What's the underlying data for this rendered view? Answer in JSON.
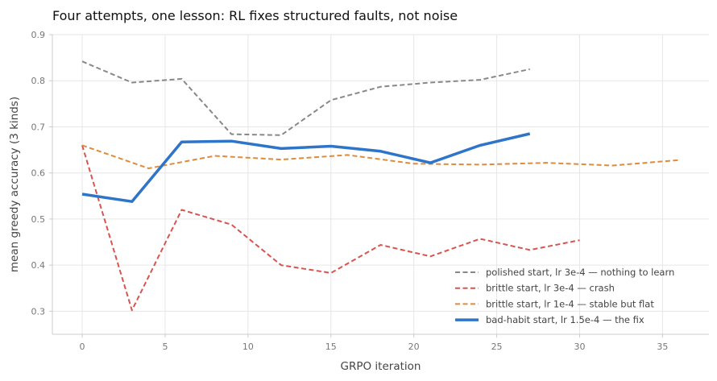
{
  "chart_data": {
    "type": "line",
    "title": "Four attempts, one lesson: RL fixes structured faults, not noise",
    "xlabel": "GRPO iteration",
    "ylabel": "mean greedy accuracy (3 kinds)",
    "xlim": [
      -1.8,
      37.8
    ],
    "ylim": [
      0.25,
      0.9
    ],
    "xticks": [
      0,
      5,
      10,
      15,
      20,
      25,
      30,
      35
    ],
    "yticks": [
      0.3,
      0.4,
      0.5,
      0.6,
      0.7,
      0.8,
      0.9
    ],
    "grid": true,
    "legend_position": "lower-right",
    "series": [
      {
        "name": "polished start, lr 3e-4 — nothing to learn",
        "color": "#888888",
        "style": "dashed",
        "width": 2,
        "x": [
          0,
          3,
          6,
          9,
          12,
          15,
          18,
          21,
          24,
          27
        ],
        "y": [
          0.842,
          0.796,
          0.804,
          0.684,
          0.682,
          0.758,
          0.787,
          0.796,
          0.802,
          0.825
        ]
      },
      {
        "name": "brittle start, lr 3e-4 — crash",
        "color": "#d9534f",
        "style": "dashed",
        "width": 2,
        "x": [
          0,
          3,
          6,
          9,
          12,
          15,
          18,
          21,
          24,
          27,
          30
        ],
        "y": [
          0.66,
          0.302,
          0.52,
          0.488,
          0.4,
          0.383,
          0.444,
          0.419,
          0.457,
          0.433,
          0.454
        ]
      },
      {
        "name": "brittle start, lr 1e-4 — stable but flat",
        "color": "#e08a3c",
        "style": "dashed",
        "width": 2,
        "x": [
          0,
          4,
          8,
          12,
          16,
          20,
          24,
          28,
          32,
          36
        ],
        "y": [
          0.66,
          0.61,
          0.637,
          0.629,
          0.639,
          0.62,
          0.618,
          0.622,
          0.616,
          0.628
        ]
      },
      {
        "name": "bad-habit start, lr 1.5e-4 — the fix",
        "color": "#2e75c9",
        "style": "solid",
        "width": 3.5,
        "x": [
          0,
          3,
          6,
          9,
          12,
          15,
          18,
          21,
          24,
          27
        ],
        "y": [
          0.554,
          0.538,
          0.667,
          0.669,
          0.653,
          0.658,
          0.647,
          0.622,
          0.66,
          0.685
        ]
      }
    ]
  }
}
